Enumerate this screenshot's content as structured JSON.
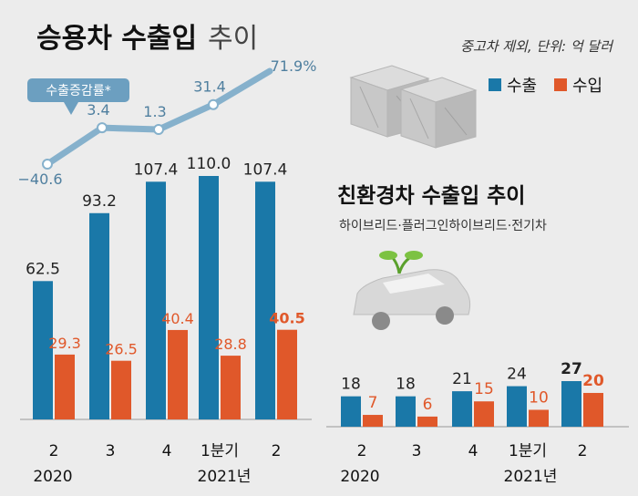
{
  "main_title_bold": "승용차 수출입",
  "main_title_light": "추이",
  "unit_note": "중고차 제외, 단위: 억 달러",
  "legend": {
    "export_label": "수출",
    "import_label": "수입",
    "export_color": "#1a78a8",
    "import_color": "#e0582a"
  },
  "growth_badge": "수출증감률*",
  "sub_title": "친환경차 수출입 추이",
  "sub_note": "하이브리드·플러그인하이브리드·전기차",
  "year_labels": {
    "left_2020": "2020",
    "left_2021": "2021년",
    "right_2020": "2020",
    "right_2021": "2021년"
  },
  "chart_data": [
    {
      "type": "bar",
      "title": "승용차 수출입 추이",
      "categories": [
        "2",
        "3",
        "4",
        "1분기",
        "2"
      ],
      "series": [
        {
          "name": "수출",
          "values": [
            62.5,
            93.2,
            107.4,
            110.0,
            107.4
          ],
          "labels": [
            "62.5",
            "93.2",
            "107.4",
            "110.0",
            "107.4"
          ]
        },
        {
          "name": "수입",
          "values": [
            29.3,
            26.5,
            40.4,
            28.8,
            40.5
          ],
          "labels": [
            "29.3",
            "26.5",
            "40.4",
            "28.8",
            "40.5"
          ]
        }
      ]
    },
    {
      "type": "line",
      "name": "수출증감률*",
      "categories": [
        "2",
        "3",
        "4",
        "1분기",
        "2"
      ],
      "values": [
        -40.6,
        3.4,
        1.3,
        31.4,
        71.9
      ],
      "labels": [
        "−40.6",
        "3.4",
        "1.3",
        "31.4",
        "71.9%"
      ]
    },
    {
      "type": "bar",
      "title": "친환경차 수출입 추이",
      "categories": [
        "2",
        "3",
        "4",
        "1분기",
        "2"
      ],
      "series": [
        {
          "name": "수출",
          "values": [
            18,
            18,
            21,
            24,
            27
          ],
          "labels": [
            "18",
            "18",
            "21",
            "24",
            "27"
          ]
        },
        {
          "name": "수입",
          "values": [
            7,
            6,
            15,
            10,
            20
          ],
          "labels": [
            "7",
            "6",
            "15",
            "10",
            "20"
          ]
        }
      ]
    }
  ]
}
